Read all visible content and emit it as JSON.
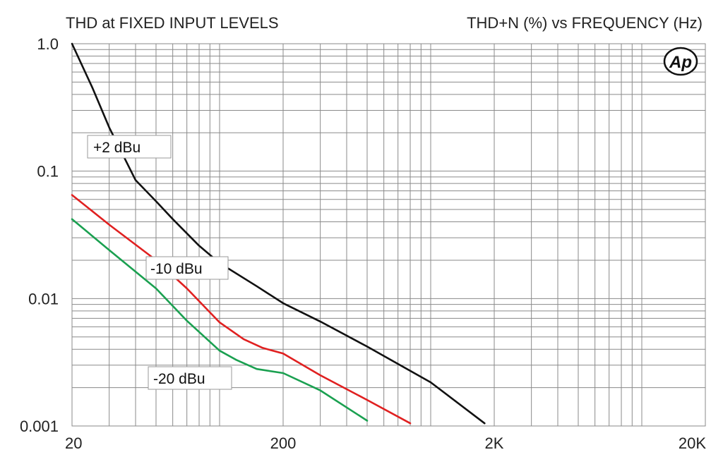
{
  "chart_data": {
    "type": "line",
    "title_left": "THD at FIXED INPUT LEVELS",
    "title_right": "THD+N (%) vs FREQUENCY (Hz)",
    "x_scale": "log",
    "y_scale": "log",
    "xlim": [
      20,
      20000
    ],
    "ylim": [
      0.001,
      1.0
    ],
    "x_ticks": [
      {
        "value": 20,
        "label": "20"
      },
      {
        "value": 200,
        "label": "200"
      },
      {
        "value": 2000,
        "label": "2K"
      },
      {
        "value": 20000,
        "label": "20K"
      }
    ],
    "y_ticks": [
      {
        "value": 1.0,
        "label": "1.0"
      },
      {
        "value": 0.1,
        "label": "0.1"
      },
      {
        "value": 0.01,
        "label": "0.01"
      },
      {
        "value": 0.001,
        "label": "0.001"
      }
    ],
    "grid": true,
    "series": [
      {
        "name": "+2 dBu",
        "color": "#111111",
        "x": [
          20,
          25,
          30,
          40,
          50,
          60,
          80,
          100,
          150,
          200,
          300,
          500,
          1000,
          1800
        ],
        "y": [
          1.0,
          0.45,
          0.22,
          0.085,
          0.058,
          0.042,
          0.026,
          0.019,
          0.0125,
          0.0092,
          0.0066,
          0.0042,
          0.0022,
          0.00105
        ]
      },
      {
        "name": "-10 dBu",
        "color": "#e02020",
        "x": [
          20,
          30,
          50,
          70,
          100,
          130,
          160,
          200,
          300,
          500,
          800
        ],
        "y": [
          0.065,
          0.038,
          0.02,
          0.012,
          0.0065,
          0.0048,
          0.0041,
          0.0037,
          0.0025,
          0.0016,
          0.00105
        ]
      },
      {
        "name": "-20 dBu",
        "color": "#1aa050",
        "x": [
          20,
          30,
          50,
          70,
          100,
          120,
          150,
          200,
          300,
          500
        ],
        "y": [
          0.042,
          0.024,
          0.012,
          0.0067,
          0.0039,
          0.0033,
          0.0028,
          0.0026,
          0.0019,
          0.0011
        ]
      }
    ],
    "annotations": [
      {
        "text": "+2 dBu",
        "series": 0
      },
      {
        "text": "-10 dBu",
        "series": 1
      },
      {
        "text": "-20 dBu",
        "series": 2
      }
    ],
    "logo": "Ap"
  }
}
